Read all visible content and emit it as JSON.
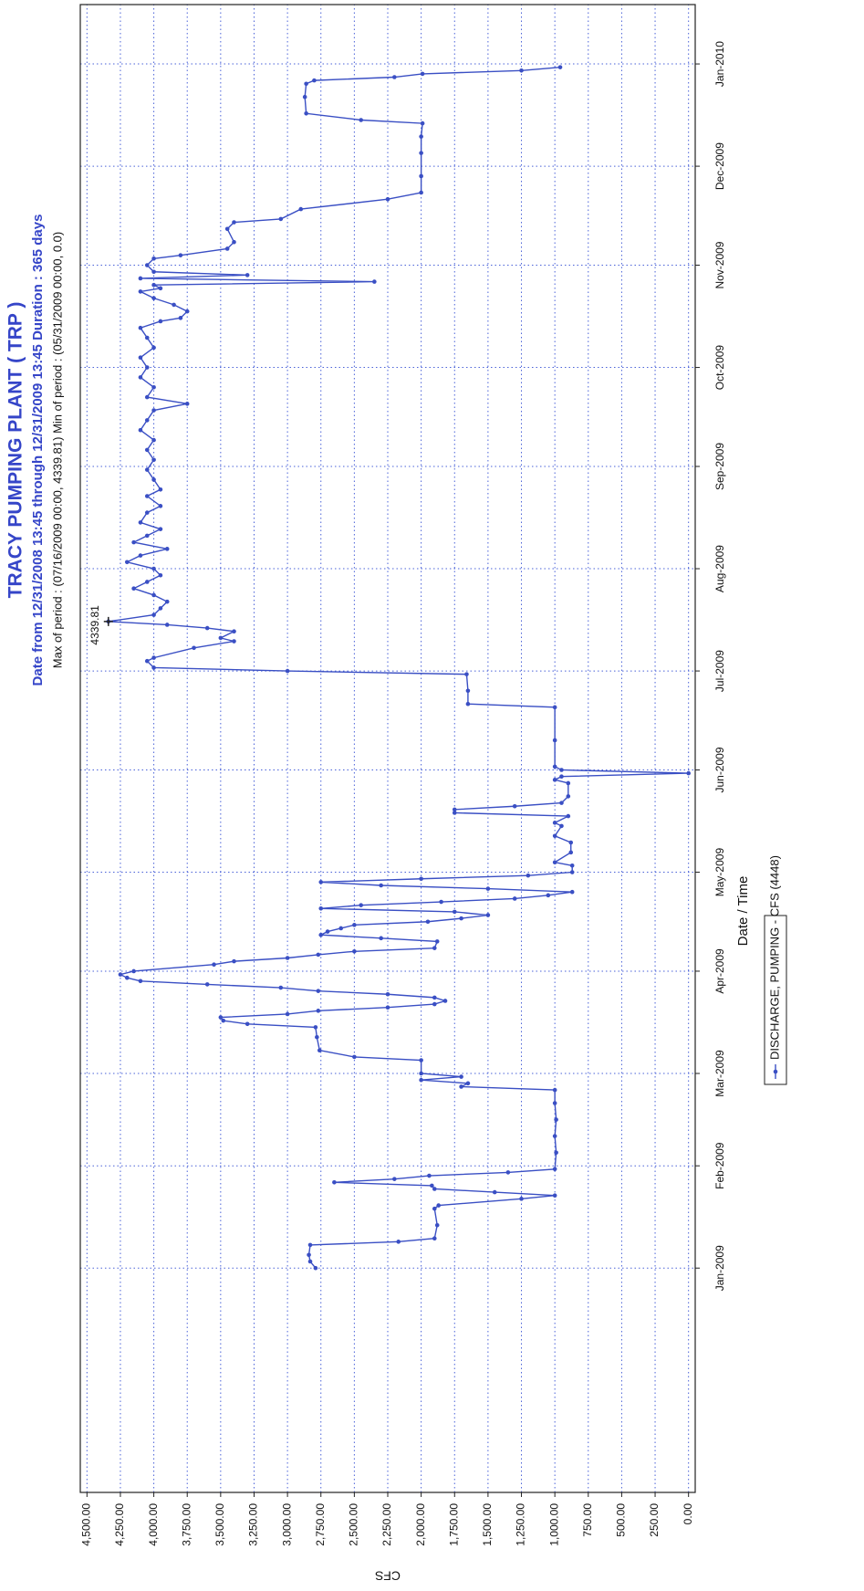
{
  "chart_data": {
    "type": "line",
    "title": "TRACY PUMPING PLANT ( TRP )",
    "subtitle": "Date from 12/31/2008 13:45 through 12/31/2009 13:45 Duration : 365 days",
    "summary": "Max of period : (07/16/2009 00:00, 4339.81)  Min of period : (05/31/2009 00:00,  0.0)",
    "x_label": "Date / Time",
    "y_label": "CFS",
    "legend": "bottom",
    "grid": true,
    "xlim": [
      "2008-10-25",
      "2010-01-19"
    ],
    "xticks": [
      {
        "value": "2009-01-01",
        "label": "Jan-2009"
      },
      {
        "value": "2009-02-01",
        "label": "Feb-2009"
      },
      {
        "value": "2009-03-01",
        "label": "Mar-2009"
      },
      {
        "value": "2009-04-01",
        "label": "Apr-2009"
      },
      {
        "value": "2009-05-01",
        "label": "May-2009"
      },
      {
        "value": "2009-06-01",
        "label": "Jun-2009"
      },
      {
        "value": "2009-07-01",
        "label": "Jul-2009"
      },
      {
        "value": "2009-08-01",
        "label": "Aug-2009"
      },
      {
        "value": "2009-09-01",
        "label": "Sep-2009"
      },
      {
        "value": "2009-10-01",
        "label": "Oct-2009"
      },
      {
        "value": "2009-11-01",
        "label": "Nov-2009"
      },
      {
        "value": "2009-12-01",
        "label": "Dec-2009"
      },
      {
        "value": "2010-01-01",
        "label": "Jan-2010"
      }
    ],
    "ylim": [
      -50,
      4550
    ],
    "yticks": [
      {
        "value": 0,
        "label": "0.00"
      },
      {
        "value": 250,
        "label": "250.00"
      },
      {
        "value": 500,
        "label": "500.00"
      },
      {
        "value": 750,
        "label": "750.00"
      },
      {
        "value": 1000,
        "label": "1,000.00"
      },
      {
        "value": 1250,
        "label": "1,250.00"
      },
      {
        "value": 1500,
        "label": "1,500.00"
      },
      {
        "value": 1750,
        "label": "1,750.00"
      },
      {
        "value": 2000,
        "label": "2,000.00"
      },
      {
        "value": 2250,
        "label": "2,250.00"
      },
      {
        "value": 2500,
        "label": "2,500.00"
      },
      {
        "value": 2750,
        "label": "2,750.00"
      },
      {
        "value": 3000,
        "label": "3,000.00"
      },
      {
        "value": 3250,
        "label": "3,250.00"
      },
      {
        "value": 3500,
        "label": "3,500.00"
      },
      {
        "value": 3750,
        "label": "3,750.00"
      },
      {
        "value": 4000,
        "label": "4,000.00"
      },
      {
        "value": 4250,
        "label": "4,250.00"
      },
      {
        "value": 4500,
        "label": "4,500.00"
      }
    ],
    "x": [
      "2009-01-01",
      "2009-01-03",
      "2009-01-05",
      "2009-01-08",
      "2009-01-09",
      "2009-01-10",
      "2009-01-14",
      "2009-01-19",
      "2009-01-20",
      "2009-01-22",
      "2009-01-23",
      "2009-01-24",
      "2009-01-25",
      "2009-01-26",
      "2009-01-27",
      "2009-01-28",
      "2009-01-29",
      "2009-01-30",
      "2009-01-31",
      "2009-02-05",
      "2009-02-10",
      "2009-02-15",
      "2009-02-20",
      "2009-02-24",
      "2009-02-25",
      "2009-02-26",
      "2009-02-27",
      "2009-02-28",
      "2009-03-01",
      "2009-03-05",
      "2009-03-06",
      "2009-03-08",
      "2009-03-12",
      "2009-03-15",
      "2009-03-16",
      "2009-03-17",
      "2009-03-18",
      "2009-03-19",
      "2009-03-20",
      "2009-03-21",
      "2009-03-22",
      "2009-03-23",
      "2009-03-24",
      "2009-03-25",
      "2009-03-26",
      "2009-03-27",
      "2009-03-28",
      "2009-03-29",
      "2009-03-30",
      "2009-03-31",
      "2009-04-01",
      "2009-04-03",
      "2009-04-04",
      "2009-04-05",
      "2009-04-06",
      "2009-04-07",
      "2009-04-08",
      "2009-04-10",
      "2009-04-11",
      "2009-04-12",
      "2009-04-13",
      "2009-04-14",
      "2009-04-15",
      "2009-04-16",
      "2009-04-17",
      "2009-04-18",
      "2009-04-19",
      "2009-04-20",
      "2009-04-21",
      "2009-04-22",
      "2009-04-23",
      "2009-04-24",
      "2009-04-25",
      "2009-04-26",
      "2009-04-27",
      "2009-04-28",
      "2009-04-29",
      "2009-04-30",
      "2009-05-01",
      "2009-05-03",
      "2009-05-04",
      "2009-05-07",
      "2009-05-10",
      "2009-05-12",
      "2009-05-15",
      "2009-05-16",
      "2009-05-18",
      "2009-05-19",
      "2009-05-20",
      "2009-05-21",
      "2009-05-22",
      "2009-05-24",
      "2009-05-28",
      "2009-05-29",
      "2009-05-30",
      "2009-05-31",
      "2009-06-01",
      "2009-06-02",
      "2009-06-10",
      "2009-06-20",
      "2009-06-21",
      "2009-06-25",
      "2009-06-30",
      "2009-07-01",
      "2009-07-02",
      "2009-07-04",
      "2009-07-05",
      "2009-07-08",
      "2009-07-10",
      "2009-07-11",
      "2009-07-13",
      "2009-07-14",
      "2009-07-15",
      "2009-07-16",
      "2009-07-18",
      "2009-07-20",
      "2009-07-22",
      "2009-07-24",
      "2009-07-26",
      "2009-07-28",
      "2009-07-30",
      "2009-08-01",
      "2009-08-03",
      "2009-08-05",
      "2009-08-07",
      "2009-08-09",
      "2009-08-11",
      "2009-08-13",
      "2009-08-15",
      "2009-08-18",
      "2009-08-20",
      "2009-08-23",
      "2009-08-25",
      "2009-08-28",
      "2009-08-31",
      "2009-09-03",
      "2009-09-06",
      "2009-09-09",
      "2009-09-12",
      "2009-09-15",
      "2009-09-18",
      "2009-09-20",
      "2009-09-22",
      "2009-09-25",
      "2009-09-28",
      "2009-10-01",
      "2009-10-04",
      "2009-10-07",
      "2009-10-10",
      "2009-10-13",
      "2009-10-15",
      "2009-10-16",
      "2009-10-18",
      "2009-10-20",
      "2009-10-22",
      "2009-10-24",
      "2009-10-25",
      "2009-10-26",
      "2009-10-27",
      "2009-10-28",
      "2009-10-29",
      "2009-10-30",
      "2009-11-01",
      "2009-11-03",
      "2009-11-04",
      "2009-11-06",
      "2009-11-08",
      "2009-11-12",
      "2009-11-14",
      "2009-11-15",
      "2009-11-18",
      "2009-11-21",
      "2009-11-23",
      "2009-11-28",
      "2009-12-05",
      "2009-12-10",
      "2009-12-14",
      "2009-12-15",
      "2009-12-17",
      "2009-12-22",
      "2009-12-26",
      "2009-12-27",
      "2009-12-28",
      "2009-12-29",
      "2009-12-30",
      "2009-12-31"
    ],
    "series": [
      {
        "name": "DISCHARGE, PUMPING - CFS (4448)",
        "color": "#3a4fc4",
        "values": [
          2790,
          2830,
          2840,
          2830,
          2170,
          1900,
          1880,
          1900,
          1870,
          1250,
          1000,
          1450,
          1900,
          1920,
          2650,
          2200,
          1940,
          1350,
          1000,
          990,
          1000,
          990,
          1000,
          1000,
          1700,
          1650,
          2000,
          1700,
          2000,
          2000,
          2500,
          2760,
          2780,
          2790,
          3300,
          3480,
          3500,
          3000,
          2770,
          2250,
          1900,
          1820,
          1900,
          2250,
          2770,
          3050,
          3600,
          4100,
          4200,
          4250,
          4150,
          3550,
          3400,
          3000,
          2770,
          2500,
          1900,
          1880,
          2300,
          2750,
          2700,
          2600,
          2500,
          1950,
          1700,
          1500,
          1750,
          2750,
          2450,
          1850,
          1300,
          1050,
          870,
          1500,
          2300,
          2750,
          2000,
          1200,
          870,
          870,
          1000,
          880,
          880,
          1000,
          950,
          1000,
          900,
          1750,
          1750,
          1300,
          950,
          900,
          900,
          1000,
          950,
          0,
          950,
          1000,
          1000,
          1000,
          1650,
          1650,
          1660,
          3000,
          4000,
          4050,
          4000,
          3700,
          3400,
          3500,
          3400,
          3600,
          3900,
          4339.81,
          4000,
          3950,
          3900,
          4000,
          4150,
          4050,
          3950,
          4000,
          4200,
          4100,
          3900,
          4150,
          4050,
          3950,
          4100,
          4050,
          3950,
          4050,
          3950,
          4000,
          4050,
          4000,
          4050,
          4000,
          4100,
          4050,
          4000,
          3750,
          4050,
          4000,
          4100,
          4050,
          4100,
          4000,
          4050,
          4100,
          3950,
          3800,
          3750,
          3850,
          4000,
          4100,
          3950,
          4000,
          2350,
          4100,
          3300,
          4000,
          4050,
          4000,
          3800,
          3450,
          3400,
          3450,
          3400,
          3050,
          2900,
          2250,
          2000,
          2000,
          2000,
          2000,
          1990,
          2450,
          2860,
          2870,
          2860,
          2800,
          2200,
          1990,
          1250,
          960
        ]
      }
    ],
    "annotations": [
      {
        "text": "4339.81",
        "x": "2009-07-16",
        "y": 4339.81
      }
    ]
  }
}
